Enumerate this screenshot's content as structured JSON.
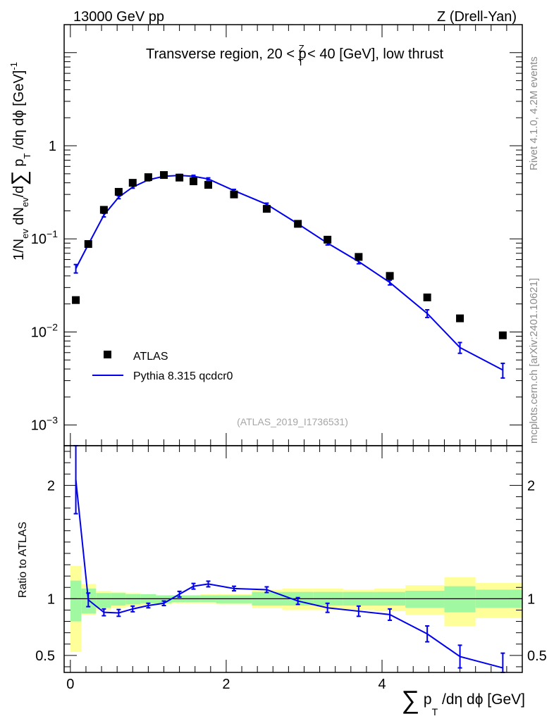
{
  "header": {
    "left": "13000 GeV pp",
    "right": "Z (Drell-Yan)"
  },
  "side_labels": {
    "rivet": "Rivet 4.1.0,  4.2M events",
    "mcplots": "mcplots.cern.ch [arXiv:2401.10621]"
  },
  "chart_data": [
    {
      "type": "scatter",
      "panel": "main",
      "title_parts": {
        "pre": "Transverse region, 20 < p",
        "sup": "Z",
        "sub": "T",
        "post": " < 40 [GeV], low thrust"
      },
      "analysis_id": "(ATLAS_2019_I1736531)",
      "ylabel_parts": [
        "1/N",
        "ev",
        " dN",
        "ev",
        "/d",
        "∑",
        " p",
        "T",
        " /dη dϕ  [GeV]",
        "-1"
      ],
      "yscale": "log",
      "ylim": [
        0.0006,
        20
      ],
      "xlim": [
        -0.08,
        5.8
      ],
      "y_ticks": [
        {
          "value": 1,
          "base": "1",
          "exp": ""
        },
        {
          "value": 0.1,
          "base": "10",
          "exp": "−1"
        },
        {
          "value": 0.01,
          "base": "10",
          "exp": "−2"
        },
        {
          "value": 0.001,
          "base": "10",
          "exp": "−3"
        }
      ],
      "legend": {
        "position": "lower-left",
        "data_label": "ATLAS",
        "mc_label": "Pythia 8.315 qcdcr0"
      },
      "series": [
        {
          "name": "ATLAS",
          "style": "markers",
          "color": "#000000",
          "x": [
            0.07,
            0.23,
            0.43,
            0.62,
            0.8,
            1.0,
            1.2,
            1.4,
            1.58,
            1.77,
            2.1,
            2.52,
            2.92,
            3.3,
            3.7,
            4.1,
            4.58,
            5.0,
            5.55
          ],
          "y": [
            0.022,
            0.088,
            0.205,
            0.32,
            0.4,
            0.46,
            0.485,
            0.455,
            0.415,
            0.38,
            0.3,
            0.21,
            0.145,
            0.098,
            0.064,
            0.04,
            0.0235,
            0.014,
            0.0092
          ]
        },
        {
          "name": "Pythia 8.315 qcdcr0",
          "style": "line",
          "color": "#0000ee",
          "x": [
            0.07,
            0.23,
            0.43,
            0.62,
            0.8,
            1.0,
            1.2,
            1.4,
            1.58,
            1.77,
            2.1,
            2.52,
            2.92,
            3.3,
            3.7,
            4.1,
            4.58,
            5.0,
            5.55
          ],
          "y": [
            0.048,
            0.087,
            0.18,
            0.28,
            0.36,
            0.43,
            0.47,
            0.48,
            0.47,
            0.44,
            0.33,
            0.235,
            0.145,
            0.09,
            0.057,
            0.034,
            0.0158,
            0.0068,
            0.0039
          ],
          "err": [
            0.005,
            0.004,
            0.008,
            0.01,
            0.01,
            0.01,
            0.01,
            0.012,
            0.012,
            0.012,
            0.01,
            0.007,
            0.005,
            0.004,
            0.003,
            0.002,
            0.0015,
            0.0009,
            0.0007
          ]
        }
      ]
    },
    {
      "type": "line",
      "panel": "ratio",
      "ylabel": "Ratio to ATLAS",
      "xlabel_parts": [
        "∑",
        " p",
        "T",
        " /dη dϕ [GeV]"
      ],
      "ylim": [
        0.35,
        2.35
      ],
      "xlim": [
        -0.08,
        5.8
      ],
      "x_ticks": [
        0,
        2,
        4
      ],
      "y_ticks": [
        0.5,
        1,
        2
      ],
      "reference_line": 1,
      "bands": {
        "edges": [
          0,
          0.14,
          0.33,
          0.52,
          0.71,
          0.9,
          1.1,
          1.3,
          1.48,
          1.67,
          1.87,
          2.33,
          2.72,
          3.12,
          3.5,
          3.9,
          4.3,
          4.8,
          5.2,
          5.8
        ],
        "stat_low": [
          0.8,
          0.87,
          0.92,
          0.94,
          0.95,
          0.96,
          0.96,
          0.97,
          0.97,
          0.97,
          0.96,
          0.94,
          0.94,
          0.94,
          0.94,
          0.94,
          0.92,
          0.88,
          0.92
        ],
        "stat_high": [
          1.16,
          1.09,
          1.05,
          1.05,
          1.04,
          1.04,
          1.03,
          1.03,
          1.03,
          1.03,
          1.03,
          1.06,
          1.06,
          1.06,
          1.06,
          1.06,
          1.07,
          1.11,
          1.08
        ],
        "tot_low": [
          0.53,
          0.86,
          0.9,
          0.92,
          0.93,
          0.94,
          0.95,
          0.96,
          0.96,
          0.96,
          0.95,
          0.92,
          0.9,
          0.9,
          0.9,
          0.89,
          0.86,
          0.76,
          0.83
        ],
        "tot_high": [
          1.29,
          1.13,
          1.07,
          1.06,
          1.05,
          1.04,
          1.03,
          1.03,
          1.03,
          1.04,
          1.04,
          1.08,
          1.09,
          1.09,
          1.08,
          1.09,
          1.12,
          1.19,
          1.14
        ],
        "stat_color": "#a0f8a0",
        "total_color": "#ffff99"
      },
      "series": [
        {
          "name": "Pythia 8.315 qcdcr0 / ATLAS",
          "color": "#0000ee",
          "x": [
            0.07,
            0.23,
            0.43,
            0.62,
            0.8,
            1.0,
            1.2,
            1.4,
            1.58,
            1.77,
            2.1,
            2.52,
            2.92,
            3.3,
            3.7,
            4.1,
            4.58,
            5.0,
            5.55
          ],
          "y": [
            2.05,
            0.99,
            0.88,
            0.875,
            0.91,
            0.94,
            0.96,
            1.04,
            1.11,
            1.13,
            1.09,
            1.08,
            0.98,
            0.92,
            0.89,
            0.86,
            0.69,
            0.49,
            0.39
          ],
          "err": [
            0.3,
            0.06,
            0.03,
            0.03,
            0.025,
            0.02,
            0.02,
            0.025,
            0.025,
            0.025,
            0.02,
            0.025,
            0.03,
            0.04,
            0.045,
            0.05,
            0.07,
            0.1,
            0.13
          ]
        }
      ]
    }
  ]
}
